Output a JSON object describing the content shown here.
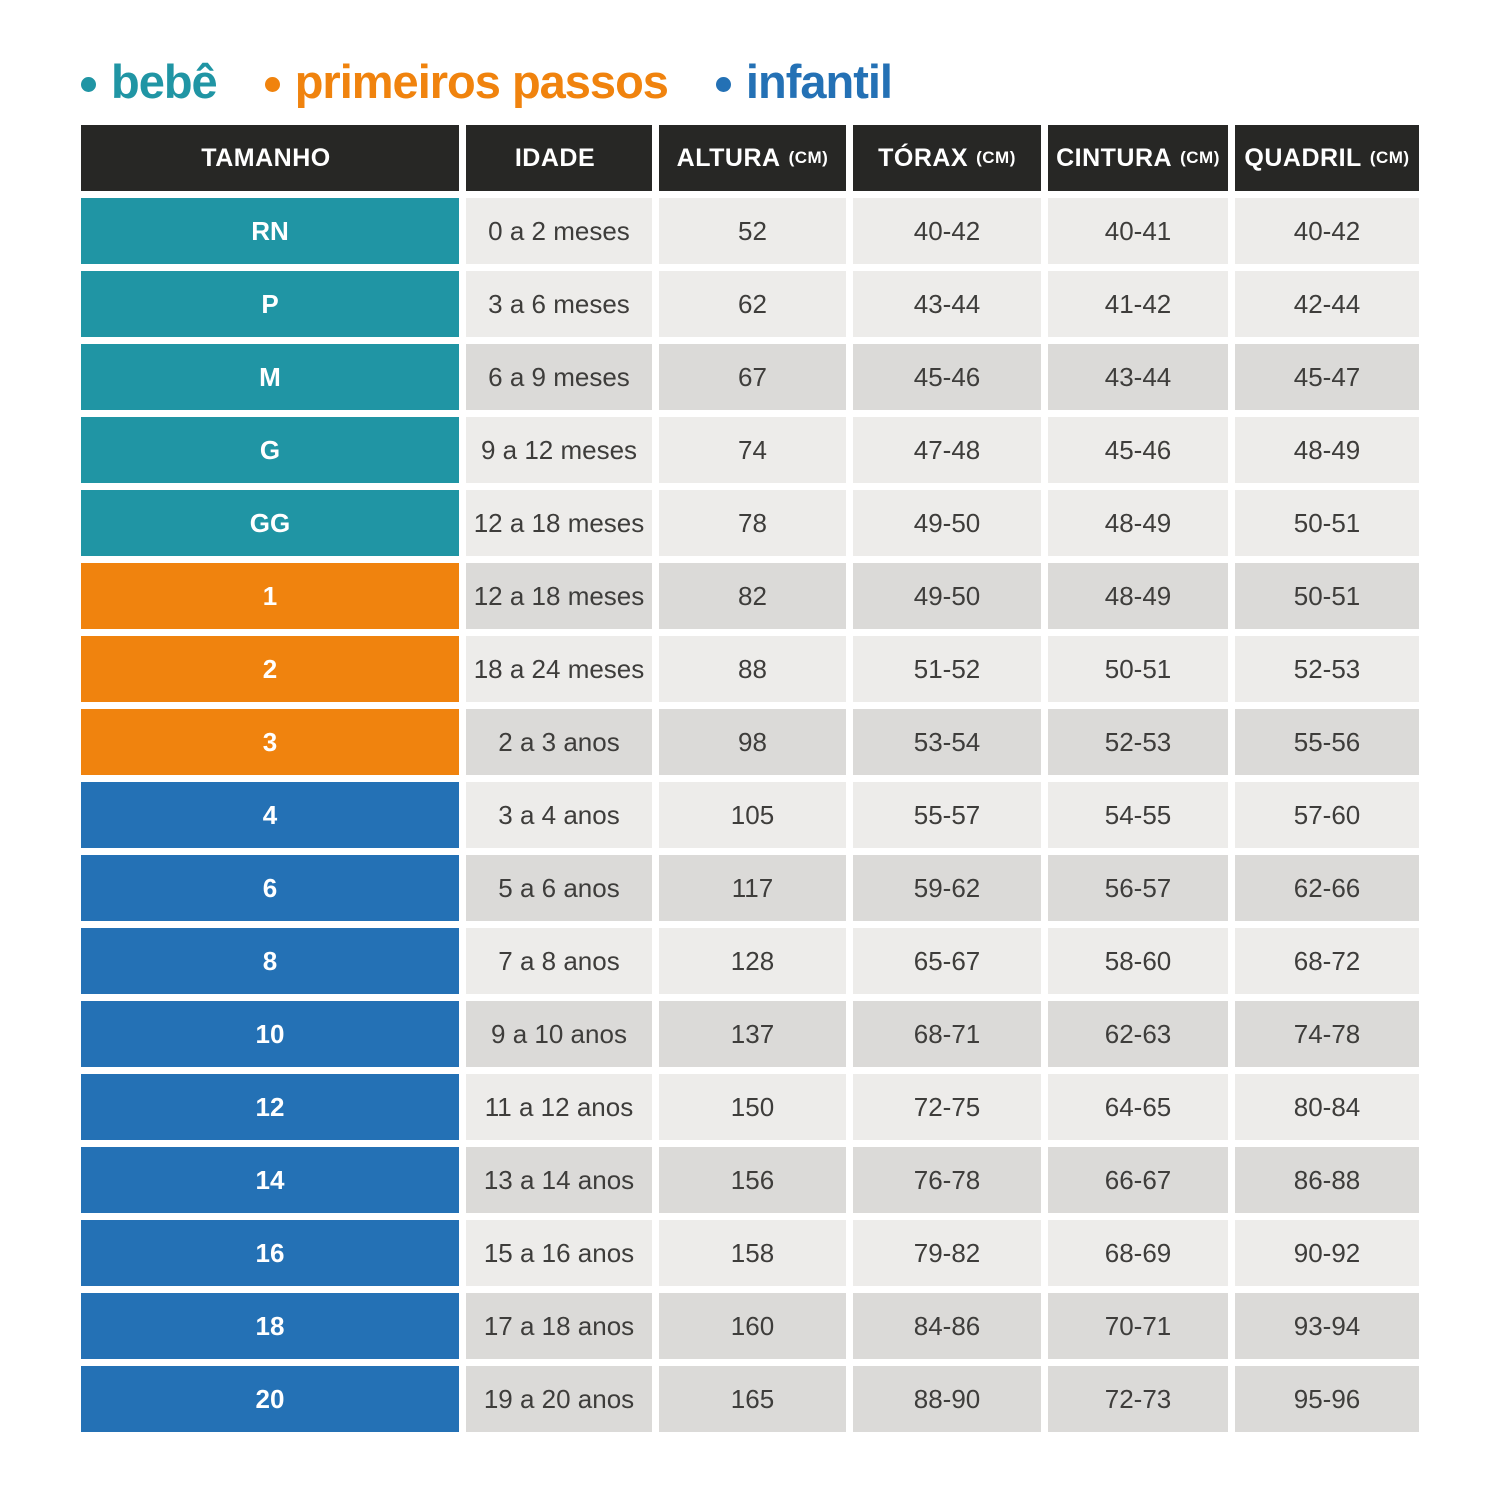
{
  "legend": {
    "items": [
      {
        "id": "bebe",
        "label": "bebê",
        "color": "#2095a4"
      },
      {
        "id": "primeiros_passos",
        "label": "primeiros passos",
        "color": "#f0830e"
      },
      {
        "id": "infantil",
        "label": "infantil",
        "color": "#2471b5"
      }
    ]
  },
  "colors": {
    "bebe": "#2095a4",
    "primeiros_passos": "#f0830e",
    "infantil": "#2471b5",
    "header_bg": "#272725",
    "cell_light": "#edecea",
    "cell_dark": "#dbdad8",
    "text": "#3e3d3b"
  },
  "table": {
    "columns": [
      {
        "label": "TAMANHO",
        "unit": ""
      },
      {
        "label": "IDADE",
        "unit": ""
      },
      {
        "label": "ALTURA",
        "unit": "(CM)"
      },
      {
        "label": "TÓRAX",
        "unit": "(CM)"
      },
      {
        "label": "CINTURA",
        "unit": "(CM)"
      },
      {
        "label": "QUADRIL",
        "unit": "(CM)"
      }
    ],
    "rows": [
      {
        "size": "RN",
        "group": "bebe",
        "shade": "light",
        "idade": "0 a 2 meses",
        "altura": "52",
        "torax": "40-42",
        "cintura": "40-41",
        "quadril": "40-42"
      },
      {
        "size": "P",
        "group": "bebe",
        "shade": "light",
        "idade": "3 a 6 meses",
        "altura": "62",
        "torax": "43-44",
        "cintura": "41-42",
        "quadril": "42-44"
      },
      {
        "size": "M",
        "group": "bebe",
        "shade": "dark",
        "idade": "6 a 9 meses",
        "altura": "67",
        "torax": "45-46",
        "cintura": "43-44",
        "quadril": "45-47"
      },
      {
        "size": "G",
        "group": "bebe",
        "shade": "light",
        "idade": "9 a 12 meses",
        "altura": "74",
        "torax": "47-48",
        "cintura": "45-46",
        "quadril": "48-49"
      },
      {
        "size": "GG",
        "group": "bebe",
        "shade": "light",
        "idade": "12 a 18 meses",
        "altura": "78",
        "torax": "49-50",
        "cintura": "48-49",
        "quadril": "50-51"
      },
      {
        "size": "1",
        "group": "primeiros_passos",
        "shade": "dark",
        "idade": "12 a 18 meses",
        "altura": "82",
        "torax": "49-50",
        "cintura": "48-49",
        "quadril": "50-51"
      },
      {
        "size": "2",
        "group": "primeiros_passos",
        "shade": "light",
        "idade": "18 a 24 meses",
        "altura": "88",
        "torax": "51-52",
        "cintura": "50-51",
        "quadril": "52-53"
      },
      {
        "size": "3",
        "group": "primeiros_passos",
        "shade": "dark",
        "idade": "2 a 3 anos",
        "altura": "98",
        "torax": "53-54",
        "cintura": "52-53",
        "quadril": "55-56"
      },
      {
        "size": "4",
        "group": "infantil",
        "shade": "light",
        "idade": "3 a 4 anos",
        "altura": "105",
        "torax": "55-57",
        "cintura": "54-55",
        "quadril": "57-60"
      },
      {
        "size": "6",
        "group": "infantil",
        "shade": "dark",
        "idade": "5 a 6 anos",
        "altura": "117",
        "torax": "59-62",
        "cintura": "56-57",
        "quadril": "62-66"
      },
      {
        "size": "8",
        "group": "infantil",
        "shade": "light",
        "idade": "7 a 8 anos",
        "altura": "128",
        "torax": "65-67",
        "cintura": "58-60",
        "quadril": "68-72"
      },
      {
        "size": "10",
        "group": "infantil",
        "shade": "dark",
        "idade": "9 a 10 anos",
        "altura": "137",
        "torax": "68-71",
        "cintura": "62-63",
        "quadril": "74-78"
      },
      {
        "size": "12",
        "group": "infantil",
        "shade": "light",
        "idade": "11 a 12 anos",
        "altura": "150",
        "torax": "72-75",
        "cintura": "64-65",
        "quadril": "80-84"
      },
      {
        "size": "14",
        "group": "infantil",
        "shade": "dark",
        "idade": "13 a 14 anos",
        "altura": "156",
        "torax": "76-78",
        "cintura": "66-67",
        "quadril": "86-88"
      },
      {
        "size": "16",
        "group": "infantil",
        "shade": "light",
        "idade": "15 a 16 anos",
        "altura": "158",
        "torax": "79-82",
        "cintura": "68-69",
        "quadril": "90-92"
      },
      {
        "size": "18",
        "group": "infantil",
        "shade": "dark",
        "idade": "17 a 18 anos",
        "altura": "160",
        "torax": "84-86",
        "cintura": "70-71",
        "quadril": "93-94"
      },
      {
        "size": "20",
        "group": "infantil",
        "shade": "dark",
        "idade": "19 a 20 anos",
        "altura": "165",
        "torax": "88-90",
        "cintura": "72-73",
        "quadril": "95-96"
      }
    ]
  }
}
